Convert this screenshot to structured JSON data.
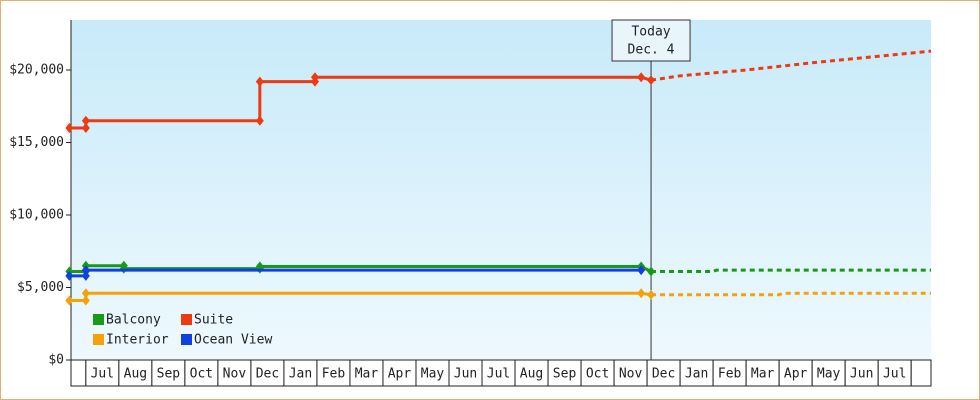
{
  "chart_data": {
    "type": "line",
    "ylim": [
      0,
      23450
    ],
    "yticks": [
      {
        "value": 0,
        "label": "$0"
      },
      {
        "value": 5000,
        "label": "$5,000"
      },
      {
        "value": 10000,
        "label": "$10,000"
      },
      {
        "value": 15000,
        "label": "$15,000"
      },
      {
        "value": 20000,
        "label": "$20,000"
      }
    ],
    "xlim": [
      -0.45,
      25.6
    ],
    "categories": [
      null,
      "Jul",
      "Aug",
      "Sep",
      "Oct",
      "Nov",
      "Dec",
      "Jan",
      "Feb",
      "Mar",
      "Apr",
      "May",
      "Jun",
      "Jul",
      "Aug",
      "Sep",
      "Oct",
      "Nov",
      "Dec",
      "Jan",
      "Feb",
      "Mar",
      "Apr",
      "May",
      "Jun",
      "Jul",
      null
    ],
    "today": {
      "x": 17.12,
      "label": [
        "Today",
        "Dec. 4"
      ]
    },
    "series": [
      {
        "name": "Balcony",
        "color": "#179a17",
        "x": [
          -0.5,
          0,
          0,
          1.15,
          1.15,
          5.27,
          5.27,
          16.82,
          17.12
        ],
        "values": [
          6100,
          6100,
          6500,
          6500,
          6300,
          6300,
          6450,
          6450,
          6100
        ],
        "projection": {
          "x": [
            17.12,
            19,
            19.1,
            25.6
          ],
          "values": [
            6100,
            6100,
            6200,
            6200
          ]
        }
      },
      {
        "name": "Suite",
        "color": "#ee3a10",
        "x": [
          -0.5,
          0,
          0,
          5.27,
          5.27,
          6.94,
          6.94,
          16.82,
          17.12
        ],
        "values": [
          16000,
          16000,
          16500,
          16500,
          19200,
          19200,
          19500,
          19500,
          19300
        ],
        "projection": {
          "x": [
            17.12,
            18,
            20,
            22,
            25.6
          ],
          "values": [
            19300,
            19600,
            20000,
            20500,
            21300
          ]
        }
      },
      {
        "name": "Interior",
        "color": "#f5a20a",
        "x": [
          -0.5,
          0,
          0,
          16.82,
          17.12
        ],
        "values": [
          4100,
          4100,
          4600,
          4600,
          4500
        ],
        "projection": {
          "x": [
            17.12,
            21,
            21.1,
            25.6
          ],
          "values": [
            4500,
            4500,
            4600,
            4600
          ]
        }
      },
      {
        "name": "Ocean View",
        "color": "#1040e0",
        "x": [
          -0.5,
          0,
          0,
          16.82
        ],
        "values": [
          5800,
          5800,
          6200,
          6200
        ]
      }
    ]
  }
}
